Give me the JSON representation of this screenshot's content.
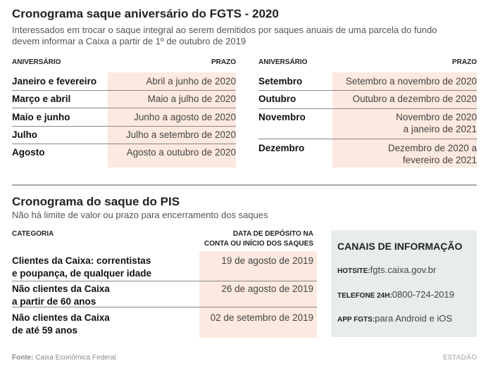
{
  "fgts": {
    "title": "Cronograma saque aniversário do FGTS - 2020",
    "subtitle_1": "Interessados em trocar o saque integral ao serem demitidos por saques anuais de uma parcela do fundo",
    "subtitle_2": "devem informar a Caixa a partir de 1º de outubro de 2019",
    "col_aniversario": "ANIVERSÁRIO",
    "col_prazo": "PRAZO",
    "left": [
      {
        "a": "Janeiro e fevereiro",
        "p": "Abril a junho de 2020"
      },
      {
        "a": "Março e abril",
        "p": "Maio a julho de 2020"
      },
      {
        "a": "Maio e junho",
        "p": "Junho a agosto de 2020"
      },
      {
        "a": "Julho",
        "p": "Julho a setembro de 2020"
      },
      {
        "a": "Agosto",
        "p": "Agosto a outubro de 2020"
      }
    ],
    "right": [
      {
        "a": "Setembro",
        "p": "Setembro a novembro de 2020"
      },
      {
        "a": "Outubro",
        "p": "Outubro a dezembro de 2020"
      },
      {
        "a": "Novembro",
        "p": "Novembro de 2020",
        "p2": "a janeiro de 2021"
      },
      {
        "a": "Dezembro",
        "p": "Dezembro de 2020 a",
        "p2": "fevereiro de 2021"
      }
    ]
  },
  "pis": {
    "title": "Cronograma do saque do PIS",
    "subtitle": "Não há limite de valor ou prazo para encerramento dos saques",
    "col_categoria": "CATEGORIA",
    "col_data_1": "DATA DE DEPÓSITO NA",
    "col_data_2": "CONTA OU INÍCIO DOS SAQUES",
    "rows": [
      {
        "c1": "Clientes da Caixa: correntistas",
        "c2": "e poupança, de qualquer idade",
        "d": "19 de agosto de 2019"
      },
      {
        "c1": "Não clientes da Caixa",
        "c2": "a partir de 60 anos",
        "d": "26 de agosto de 2019"
      },
      {
        "c1": "Não clientes da Caixa",
        "c2": "de até 59 anos",
        "d": "02 de setembro de 2019"
      }
    ]
  },
  "info": {
    "title": "CANAIS DE INFORMAÇÃO",
    "hotsite_label": "HOTSITE:",
    "hotsite": "fgts.caixa.gov.br",
    "phone_label": "TELEFONE 24H:",
    "phone": "0800-724-2019",
    "app_label": "APP FGTS:",
    "app": "para Android e iOS"
  },
  "footer": {
    "source_label": "Fonte:",
    "source": "Caixa Econômica Federal",
    "logo": "ESTADÃO"
  },
  "colors": {
    "highlight": "#fce9df",
    "info_bg": "#e8ecec"
  }
}
